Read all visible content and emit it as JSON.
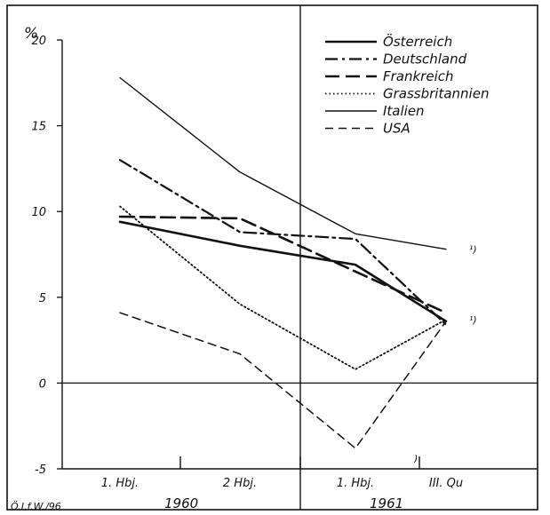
{
  "chart_data": {
    "type": "line",
    "unit_label": "%",
    "categories": [
      "1. Hbj.",
      "2 Hbj.",
      "1. Hbj.",
      "III. Qu"
    ],
    "year_labels": [
      "1960",
      "1961"
    ],
    "ylim": [
      -5,
      20
    ],
    "y_ticks": [
      20,
      15,
      10,
      5,
      0,
      -5
    ],
    "y_tick_labels": [
      "20",
      "15",
      "10",
      "5",
      "0",
      "-5"
    ],
    "zero_line": true,
    "legend_position": "top-right",
    "series": [
      {
        "name": "Österreich",
        "values": [
          9.4,
          8.0,
          6.9,
          3.6
        ],
        "color": "#111111",
        "style": "solid-thick"
      },
      {
        "name": "Deutschland",
        "values": [
          13.0,
          8.8,
          8.4,
          3.4
        ],
        "color": "#111111",
        "style": "dash-dot"
      },
      {
        "name": "Frankreich",
        "values": [
          9.7,
          9.6,
          6.5,
          4.1
        ],
        "color": "#111111",
        "style": "long-dash"
      },
      {
        "name": "Grassbritannien",
        "values": [
          10.3,
          4.6,
          0.8,
          3.7
        ],
        "color": "#111111",
        "style": "dotted"
      },
      {
        "name": "Italien",
        "values": [
          17.8,
          12.3,
          8.7,
          7.8
        ],
        "color": "#111111",
        "style": "solid-thin"
      },
      {
        "name": "USA",
        "values": [
          4.1,
          1.7,
          -3.8,
          3.6
        ],
        "color": "#111111",
        "style": "dashed"
      }
    ],
    "annotations": [
      {
        "text": "¹)",
        "anchor_series": "Italien",
        "anchor_index": 3
      },
      {
        "text": "¹)",
        "anchor_series": "Grassbritannien",
        "anchor_index": 3
      },
      {
        "text": ")",
        "anchor_series": "none",
        "anchor_index": 2
      }
    ],
    "source_note": "Ö.I.f.W./96"
  }
}
